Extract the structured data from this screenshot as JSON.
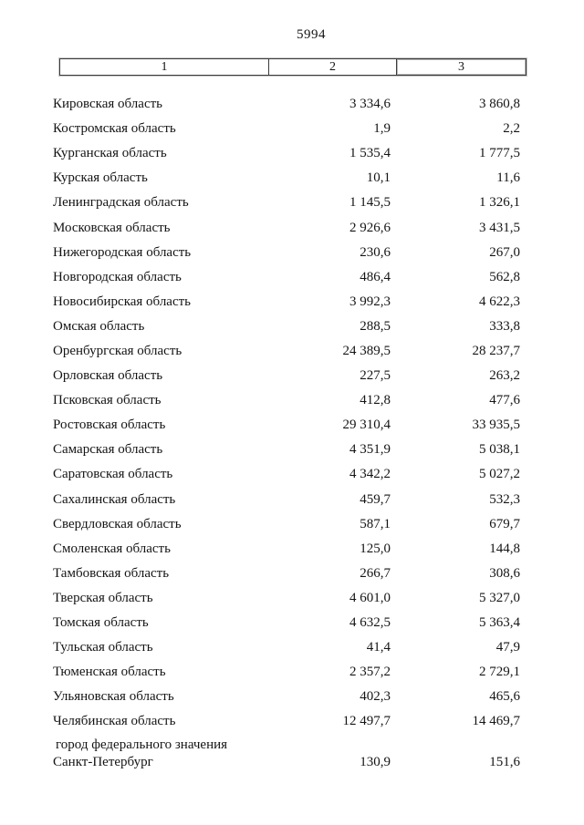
{
  "page": {
    "number": "5994"
  },
  "table": {
    "header": {
      "col1": "1",
      "col2": "2",
      "col3": "3"
    },
    "rows": [
      {
        "name_lines": [
          "Кировская область"
        ],
        "col2": "3 334,6",
        "col3": "3 860,8"
      },
      {
        "name_lines": [
          "Костромская область"
        ],
        "col2": "1,9",
        "col3": "2,2"
      },
      {
        "name_lines": [
          "Курганская область"
        ],
        "col2": "1 535,4",
        "col3": "1 777,5"
      },
      {
        "name_lines": [
          "Курская область"
        ],
        "col2": "10,1",
        "col3": "11,6"
      },
      {
        "name_lines": [
          "Ленинградская область"
        ],
        "col2": "1 145,5",
        "col3": "1 326,1"
      },
      {
        "name_lines": [
          "Московская область"
        ],
        "col2": "2 926,6",
        "col3": "3 431,5"
      },
      {
        "name_lines": [
          "Нижегородская область"
        ],
        "col2": "230,6",
        "col3": "267,0"
      },
      {
        "name_lines": [
          "Новгородская область"
        ],
        "col2": "486,4",
        "col3": "562,8"
      },
      {
        "name_lines": [
          "Новосибирская область"
        ],
        "col2": "3 992,3",
        "col3": "4 622,3"
      },
      {
        "name_lines": [
          "Омская область"
        ],
        "col2": "288,5",
        "col3": "333,8"
      },
      {
        "name_lines": [
          "Оренбургская область"
        ],
        "col2": "24 389,5",
        "col3": "28 237,7"
      },
      {
        "name_lines": [
          "Орловская область"
        ],
        "col2": "227,5",
        "col3": "263,2"
      },
      {
        "name_lines": [
          "Псковская область"
        ],
        "col2": "412,8",
        "col3": "477,6"
      },
      {
        "name_lines": [
          "Ростовская область"
        ],
        "col2": "29 310,4",
        "col3": "33 935,5"
      },
      {
        "name_lines": [
          "Самарская область"
        ],
        "col2": "4 351,9",
        "col3": "5 038,1"
      },
      {
        "name_lines": [
          "Саратовская область"
        ],
        "col2": "4 342,2",
        "col3": "5 027,2"
      },
      {
        "name_lines": [
          "Сахалинская область"
        ],
        "col2": "459,7",
        "col3": "532,3"
      },
      {
        "name_lines": [
          "Свердловская область"
        ],
        "col2": "587,1",
        "col3": "679,7"
      },
      {
        "name_lines": [
          "Смоленская область"
        ],
        "col2": "125,0",
        "col3": "144,8"
      },
      {
        "name_lines": [
          "Тамбовская область"
        ],
        "col2": "266,7",
        "col3": "308,6"
      },
      {
        "name_lines": [
          "Тверская область"
        ],
        "col2": "4 601,0",
        "col3": "5 327,0"
      },
      {
        "name_lines": [
          "Томская область"
        ],
        "col2": "4 632,5",
        "col3": "5 363,4"
      },
      {
        "name_lines": [
          "Тульская область"
        ],
        "col2": "41,4",
        "col3": "47,9"
      },
      {
        "name_lines": [
          "Тюменская область"
        ],
        "col2": "2 357,2",
        "col3": "2 729,1"
      },
      {
        "name_lines": [
          "Ульяновская область"
        ],
        "col2": "402,3",
        "col3": "465,6"
      },
      {
        "name_lines": [
          "Челябинская область"
        ],
        "col2": "12 497,7",
        "col3": "14 469,7"
      },
      {
        "name_lines": [
          "город федерального значения",
          "Санкт-Петербург"
        ],
        "col2": "130,9",
        "col3": "151,6"
      }
    ]
  }
}
